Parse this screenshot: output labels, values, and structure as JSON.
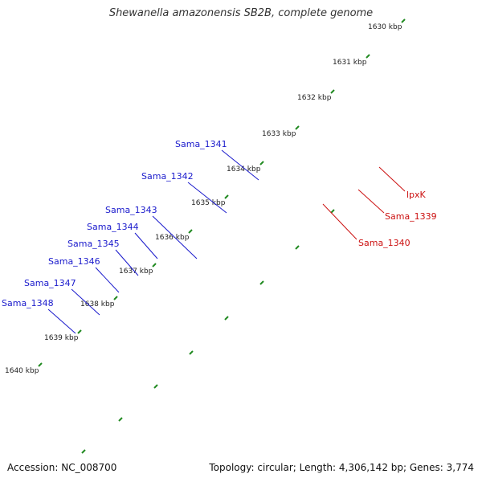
{
  "title": "Shewanella amazonensis SB2B, complete genome",
  "footer": {
    "accession": "Accession: NC_008700",
    "stats": "Topology: circular; Length: 4,306,142 bp; Genes: 3,774"
  },
  "colors": {
    "forward_gene": "#0000ee",
    "reverse_gene": "#ee0000",
    "rna_gray": "#666666",
    "olive_gene": "#6b8e23",
    "mint_track": "#19e69b",
    "light_gray_gene": "#c8c8c8",
    "backbone": "#888888",
    "tick": "#228b22",
    "blue_label": "#1a1acc",
    "red_label": "#cc1111"
  },
  "kbp_ticks": [
    "1630 kbp",
    "1631 kbp",
    "1632 kbp",
    "1633 kbp",
    "1634 kbp",
    "1635 kbp",
    "1636 kbp",
    "1637 kbp",
    "1638 kbp",
    "1639 kbp",
    "1640 kbp"
  ],
  "gene_labels_left": [
    "Sama_1341",
    "Sama_1342",
    "Sama_1343",
    "Sama_1344",
    "Sama_1345",
    "Sama_1346",
    "Sama_1347",
    "Sama_1348"
  ],
  "gene_labels_right": [
    "lpxK",
    "Sama_1339",
    "Sama_1340"
  ]
}
